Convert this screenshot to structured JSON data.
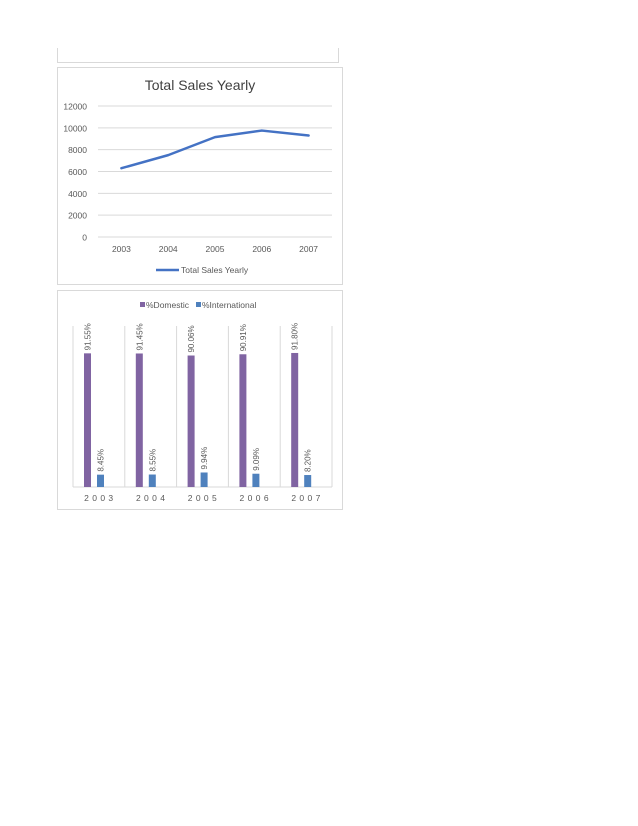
{
  "charts": {
    "line": {
      "chart_data": {
        "type": "line",
        "title": "Total Sales Yearly",
        "categories": [
          "2003",
          "2004",
          "2005",
          "2006",
          "2007"
        ],
        "series": [
          {
            "name": "Total Sales Yearly",
            "values": [
              6300,
              7500,
              9150,
              9750,
              9300
            ]
          }
        ],
        "ylim": [
          0,
          12000
        ],
        "yticks": [
          "0",
          "2000",
          "4000",
          "6000",
          "8000",
          "10000",
          "12000"
        ],
        "grid": true,
        "legend": "bottom",
        "color": "#4472c4"
      }
    },
    "bar": {
      "chart_data": {
        "type": "bar",
        "categories": [
          "2 0 0 3",
          "2 0 0 4",
          "2 0 0 5",
          "2 0 0 6",
          "2 0 0 7"
        ],
        "series": [
          {
            "name": "%Domestic",
            "values": [
              91.55,
              91.45,
              90.06,
              90.91,
              91.8
            ],
            "labels": [
              "91.55%",
              "91.45%",
              "90.06%",
              "90.91%",
              "91.80%"
            ],
            "color": "#8064a2"
          },
          {
            "name": "%International",
            "values": [
              8.45,
              8.55,
              9.94,
              9.09,
              8.2
            ],
            "labels": [
              "8.45%",
              "8.55%",
              "9.94%",
              "9.09%",
              "8.20%"
            ],
            "color": "#4f81bd"
          }
        ],
        "ylim": [
          0,
          100
        ],
        "legend": "top"
      }
    }
  }
}
